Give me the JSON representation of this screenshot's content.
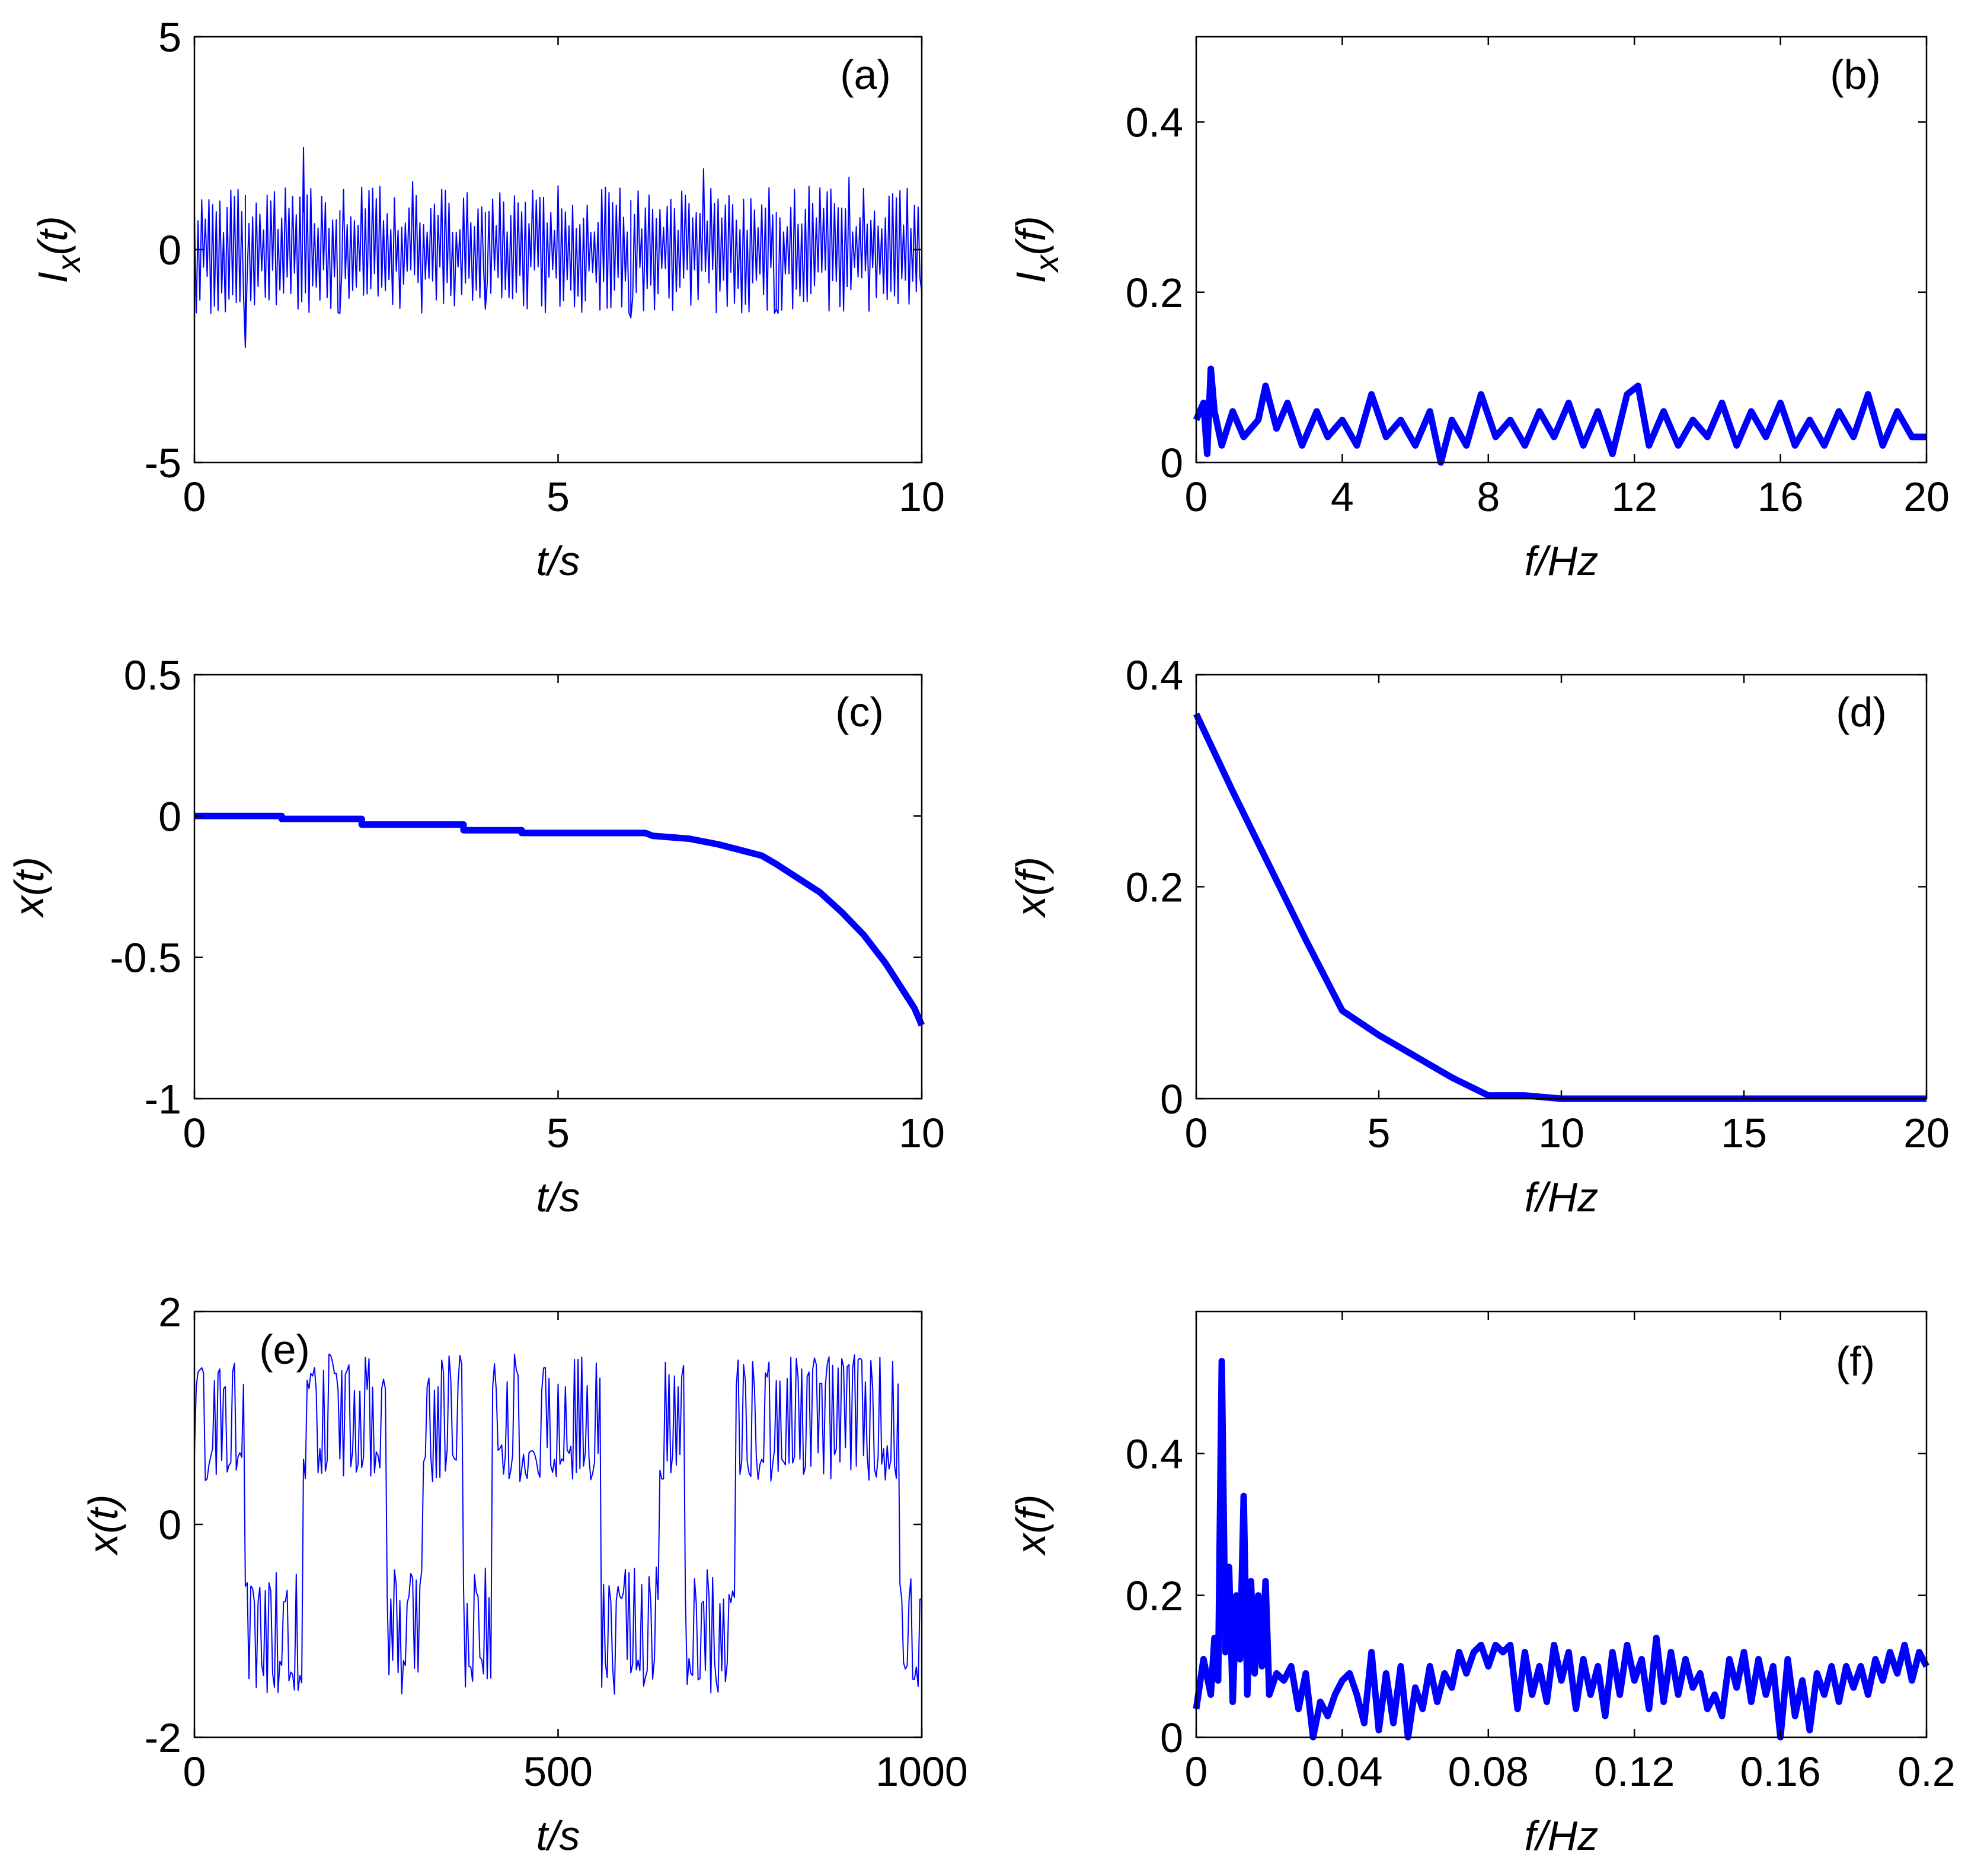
{
  "figure": {
    "line_color": "#0000ff",
    "axis_color": "#000000"
  },
  "chart_data": [
    {
      "id": "a",
      "tag": "(a)",
      "type": "line",
      "xlabel": "t/s",
      "ylabel_base": "I",
      "ylabel_sub": "x",
      "ylabel_arg": "(t)",
      "xlim": [
        0,
        10
      ],
      "ylim": [
        -5,
        5
      ],
      "xticks": [
        0,
        5,
        10
      ],
      "xtick_labels": [
        "0",
        "5",
        "10"
      ],
      "yticks": [
        5,
        0,
        -5
      ],
      "ytick_labels": [
        "5",
        "0",
        "-5"
      ],
      "series": [
        {
          "name": "I_x(t)",
          "style": "thin",
          "description": "zero-mean noise, amplitude about 1.5 (max ~2.4 near t=1.5, min ~-2.3 near t=0.7)",
          "x": [
            0,
            0.5,
            0.7,
            1.0,
            1.5,
            2.0,
            3.0,
            4.0,
            5.0,
            6.0,
            7.0,
            8.0,
            9.0,
            10.0
          ],
          "y": [
            0.8,
            1.4,
            -2.3,
            1.2,
            2.4,
            -1.5,
            1.6,
            -1.4,
            1.5,
            -1.6,
            1.9,
            -1.4,
            1.7,
            -1.0
          ]
        }
      ]
    },
    {
      "id": "b",
      "tag": "(b)",
      "type": "line",
      "xlabel": "f/Hz",
      "ylabel_base": "I",
      "ylabel_sub": "x",
      "ylabel_arg": "(f)",
      "xlim": [
        0,
        20
      ],
      "ylim": [
        0,
        0.5
      ],
      "xticks": [
        0,
        4,
        8,
        12,
        16,
        20
      ],
      "xtick_labels": [
        "0",
        "4",
        "8",
        "12",
        "16",
        "20"
      ],
      "yticks": [
        0.4,
        0.2,
        0
      ],
      "ytick_labels": [
        "0.4",
        "0.2",
        "0"
      ],
      "series": [
        {
          "name": "I_x(f)",
          "style": "thick",
          "x": [
            0,
            0.2,
            0.3,
            0.4,
            0.5,
            0.7,
            1.0,
            1.3,
            1.7,
            1.9,
            2.2,
            2.5,
            2.9,
            3.3,
            3.6,
            4.0,
            4.4,
            4.8,
            5.2,
            5.6,
            6.0,
            6.4,
            6.7,
            7.0,
            7.4,
            7.8,
            8.2,
            8.6,
            9.0,
            9.4,
            9.8,
            10.2,
            10.6,
            11.0,
            11.4,
            11.8,
            12.1,
            12.4,
            12.8,
            13.2,
            13.6,
            14.0,
            14.4,
            14.8,
            15.2,
            15.6,
            16.0,
            16.4,
            16.8,
            17.2,
            17.6,
            18.0,
            18.4,
            18.8,
            19.2,
            19.6,
            20.0
          ],
          "y": [
            0.05,
            0.07,
            0.01,
            0.11,
            0.06,
            0.02,
            0.06,
            0.03,
            0.05,
            0.09,
            0.04,
            0.07,
            0.02,
            0.06,
            0.03,
            0.05,
            0.02,
            0.08,
            0.03,
            0.05,
            0.02,
            0.06,
            0.0,
            0.05,
            0.02,
            0.08,
            0.03,
            0.05,
            0.02,
            0.06,
            0.03,
            0.07,
            0.02,
            0.06,
            0.01,
            0.08,
            0.09,
            0.02,
            0.06,
            0.02,
            0.05,
            0.03,
            0.07,
            0.02,
            0.06,
            0.03,
            0.07,
            0.02,
            0.05,
            0.02,
            0.06,
            0.03,
            0.08,
            0.02,
            0.06,
            0.03,
            0.03
          ]
        }
      ]
    },
    {
      "id": "c",
      "tag": "(c)",
      "type": "line",
      "xlabel": "t/s",
      "ylabel_base": "x",
      "ylabel_sub": "",
      "ylabel_arg": "(t)",
      "xlim": [
        0,
        10
      ],
      "ylim": [
        -1,
        0.5
      ],
      "xticks": [
        0,
        5,
        10
      ],
      "xtick_labels": [
        "0",
        "5",
        "10"
      ],
      "yticks": [
        0.5,
        0,
        -0.5,
        -1
      ],
      "ytick_labels": [
        "0.5",
        "0",
        "-0.5",
        "-1"
      ],
      "series": [
        {
          "name": "x(t)",
          "style": "thick",
          "x": [
            0,
            1.2,
            1.2,
            2.3,
            2.3,
            3.7,
            3.7,
            4.5,
            4.5,
            6.2,
            6.3,
            6.8,
            7.2,
            7.5,
            7.8,
            8.0,
            8.3,
            8.6,
            8.9,
            9.2,
            9.5,
            9.7,
            9.9,
            10.0
          ],
          "y": [
            0.0,
            0.0,
            -0.01,
            -0.01,
            -0.03,
            -0.03,
            -0.05,
            -0.05,
            -0.06,
            -0.06,
            -0.07,
            -0.08,
            -0.1,
            -0.12,
            -0.14,
            -0.17,
            -0.22,
            -0.27,
            -0.34,
            -0.42,
            -0.52,
            -0.6,
            -0.68,
            -0.74
          ]
        }
      ]
    },
    {
      "id": "d",
      "tag": "(d)",
      "type": "line",
      "xlabel": "f/Hz",
      "ylabel_base": "x",
      "ylabel_sub": "",
      "ylabel_arg": "(f)",
      "xlim": [
        0,
        20
      ],
      "ylim": [
        0,
        0.4
      ],
      "xticks": [
        0,
        5,
        10,
        15,
        20
      ],
      "xtick_labels": [
        "0",
        "5",
        "10",
        "15",
        "20"
      ],
      "yticks": [
        0.4,
        0.2,
        0
      ],
      "ytick_labels": [
        "0.4",
        "0.2",
        "0"
      ],
      "series": [
        {
          "name": "x(f)",
          "style": "thick",
          "x": [
            0,
            1,
            2,
            3,
            4,
            5,
            6,
            7,
            8,
            9,
            10,
            11,
            12,
            13,
            14,
            15,
            16,
            17,
            18,
            19,
            20
          ],
          "y": [
            0.363,
            0.29,
            0.22,
            0.15,
            0.083,
            0.06,
            0.04,
            0.02,
            0.003,
            0.003,
            0.0,
            0.0,
            0.0,
            0.0,
            0.0,
            0.0,
            0.0,
            0.0,
            0.0,
            0.0,
            0.0
          ]
        }
      ]
    },
    {
      "id": "e",
      "tag": "(e)",
      "type": "line",
      "xlabel": "t/s",
      "ylabel_base": "x",
      "ylabel_sub": "",
      "ylabel_arg": "(t)",
      "xlim": [
        0,
        1000
      ],
      "ylim": [
        -2,
        2
      ],
      "xticks": [
        0,
        500,
        1000
      ],
      "xtick_labels": [
        "0",
        "500",
        "1000"
      ],
      "yticks": [
        2,
        0,
        -2
      ],
      "ytick_labels": [
        "2",
        "0",
        "-2"
      ],
      "series": [
        {
          "name": "x(t)",
          "style": "thin",
          "description": "bistable switching between wells near +1 and -1",
          "well_intervals": [
            [
              0,
              70,
              1
            ],
            [
              70,
              150,
              -1
            ],
            [
              150,
              265,
              1
            ],
            [
              265,
              315,
              -1
            ],
            [
              315,
              370,
              1
            ],
            [
              370,
              410,
              -1
            ],
            [
              410,
              560,
              1
            ],
            [
              560,
              640,
              -1
            ],
            [
              640,
              675,
              1
            ],
            [
              675,
              745,
              -1
            ],
            [
              745,
              970,
              1
            ],
            [
              970,
              1000,
              -1
            ]
          ]
        }
      ]
    },
    {
      "id": "f",
      "tag": "(f)",
      "type": "line",
      "xlabel": "f/Hz",
      "ylabel_base": "x",
      "ylabel_sub": "",
      "ylabel_arg": "(f)",
      "xlim": [
        0,
        0.2
      ],
      "ylim": [
        0,
        0.6
      ],
      "xticks": [
        0,
        0.04,
        0.08,
        0.12,
        0.16,
        0.2
      ],
      "xtick_labels": [
        "0",
        "0.04",
        "0.08",
        "0.12",
        "0.16",
        "0.2"
      ],
      "yticks": [
        0.4,
        0.2,
        0
      ],
      "ytick_labels": [
        "0.4",
        "0.2",
        "0"
      ],
      "series": [
        {
          "name": "x(f)",
          "style": "thick",
          "x": [
            0,
            0.002,
            0.004,
            0.005,
            0.006,
            0.007,
            0.008,
            0.009,
            0.01,
            0.011,
            0.012,
            0.013,
            0.014,
            0.015,
            0.016,
            0.017,
            0.018,
            0.019,
            0.02,
            0.022,
            0.024,
            0.026,
            0.028,
            0.03,
            0.032,
            0.034,
            0.036,
            0.038,
            0.04,
            0.042,
            0.044,
            0.046,
            0.048,
            0.05,
            0.052,
            0.054,
            0.056,
            0.058,
            0.06,
            0.062,
            0.064,
            0.066,
            0.068,
            0.07,
            0.072,
            0.074,
            0.076,
            0.078,
            0.08,
            0.082,
            0.084,
            0.086,
            0.088,
            0.09,
            0.092,
            0.094,
            0.096,
            0.098,
            0.1,
            0.102,
            0.104,
            0.106,
            0.108,
            0.11,
            0.112,
            0.114,
            0.116,
            0.118,
            0.12,
            0.122,
            0.124,
            0.126,
            0.128,
            0.13,
            0.132,
            0.134,
            0.136,
            0.138,
            0.14,
            0.142,
            0.144,
            0.146,
            0.148,
            0.15,
            0.152,
            0.154,
            0.156,
            0.158,
            0.16,
            0.162,
            0.164,
            0.166,
            0.168,
            0.17,
            0.172,
            0.174,
            0.176,
            0.178,
            0.18,
            0.182,
            0.184,
            0.186,
            0.188,
            0.19,
            0.192,
            0.194,
            0.196,
            0.198,
            0.2
          ],
          "y": [
            0.04,
            0.11,
            0.06,
            0.14,
            0.08,
            0.53,
            0.12,
            0.24,
            0.05,
            0.2,
            0.11,
            0.34,
            0.06,
            0.22,
            0.09,
            0.2,
            0.1,
            0.22,
            0.06,
            0.09,
            0.08,
            0.1,
            0.04,
            0.09,
            0.0,
            0.05,
            0.03,
            0.06,
            0.08,
            0.09,
            0.06,
            0.02,
            0.12,
            0.01,
            0.09,
            0.02,
            0.1,
            0.0,
            0.07,
            0.04,
            0.1,
            0.05,
            0.09,
            0.07,
            0.12,
            0.09,
            0.12,
            0.13,
            0.1,
            0.13,
            0.12,
            0.13,
            0.04,
            0.12,
            0.06,
            0.1,
            0.05,
            0.13,
            0.08,
            0.12,
            0.04,
            0.11,
            0.06,
            0.1,
            0.03,
            0.12,
            0.06,
            0.13,
            0.08,
            0.11,
            0.04,
            0.14,
            0.05,
            0.12,
            0.06,
            0.11,
            0.07,
            0.09,
            0.04,
            0.06,
            0.03,
            0.11,
            0.07,
            0.12,
            0.05,
            0.11,
            0.06,
            0.1,
            0.0,
            0.11,
            0.03,
            0.08,
            0.01,
            0.09,
            0.06,
            0.1,
            0.05,
            0.1,
            0.07,
            0.1,
            0.06,
            0.11,
            0.08,
            0.12,
            0.09,
            0.13,
            0.08,
            0.12,
            0.1
          ]
        }
      ]
    }
  ]
}
